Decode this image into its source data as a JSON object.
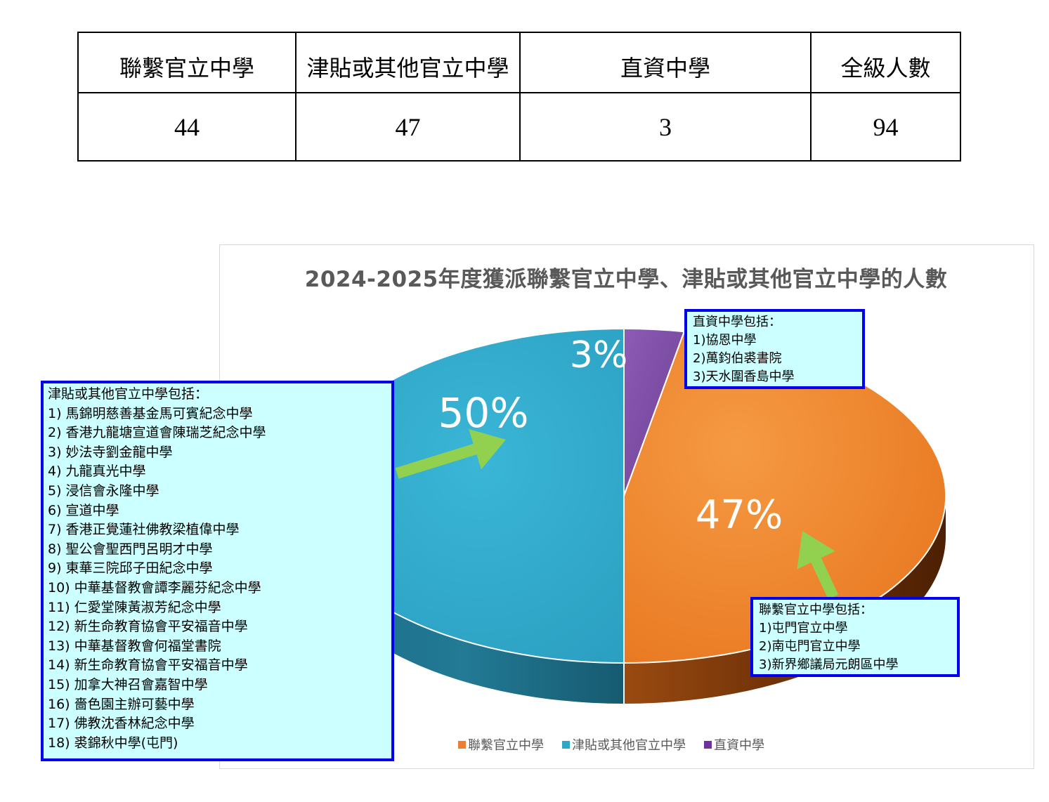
{
  "table": {
    "headers": [
      "聯繫官立中學",
      "津貼或其他官立中學",
      "直資中學",
      "全級人數"
    ],
    "values": [
      "44",
      "47",
      "3",
      "94"
    ]
  },
  "chart_data": {
    "type": "pie",
    "title": "2024-2025年度獲派聯繫官立中學、津貼或其他官立中學的人數",
    "slices": [
      {
        "name": "聯繫官立中學",
        "value": 47,
        "label": "47%",
        "color": "#ed7d31"
      },
      {
        "name": "津貼或其他官立中學",
        "value": 50,
        "label": "50%",
        "color": "#2fa8c8"
      },
      {
        "name": "直資中學",
        "value": 3,
        "label": "3%",
        "color": "#7030a0"
      }
    ],
    "legend": {
      "position": "bottom",
      "entries": [
        "聯繫官立中學",
        "津貼或其他官立中學",
        "直資中學"
      ]
    }
  },
  "callouts": {
    "dss": {
      "title": "直資中學包括：",
      "items": [
        "1)協恩中學",
        "2)萬鈞伯裘書院",
        "3)天水圍香島中學"
      ]
    },
    "subsidized": {
      "title": "津貼或其他官立中學包括：",
      "items": [
        "1) 馬錦明慈善基金馬可賓紀念中學",
        "2) 香港九龍塘宣道會陳瑞芝紀念中學",
        "3) 妙法寺劉金龍中學",
        "4) 九龍真光中學",
        "5) 浸信會永隆中學",
        "6) 宣道中學",
        "7) 香港正覺蓮社佛教梁植偉中學",
        "8) 聖公會聖西門呂明才中學",
        "9) 東華三院邱子田紀念中學",
        "10) 中華基督教會譚李麗芬紀念中學",
        "11) 仁愛堂陳黃淑芳紀念中學",
        "12) 新生命教育協會平安福音中學",
        "13) 中華基督教會何福堂書院",
        "14) 新生命教育協會平安福音中學",
        "15) 加拿大神召會嘉智中學",
        "16) 嗇色園主辦可藝中學",
        "17) 佛教沈香林紀念中學",
        "18) 裘錦秋中學(屯門)"
      ]
    },
    "gov": {
      "title": "聯繫官立中學包括：",
      "items": [
        "1)屯門官立中學",
        "2)南屯門官立中學",
        "3)新界鄉議局元朗區中學"
      ]
    }
  }
}
